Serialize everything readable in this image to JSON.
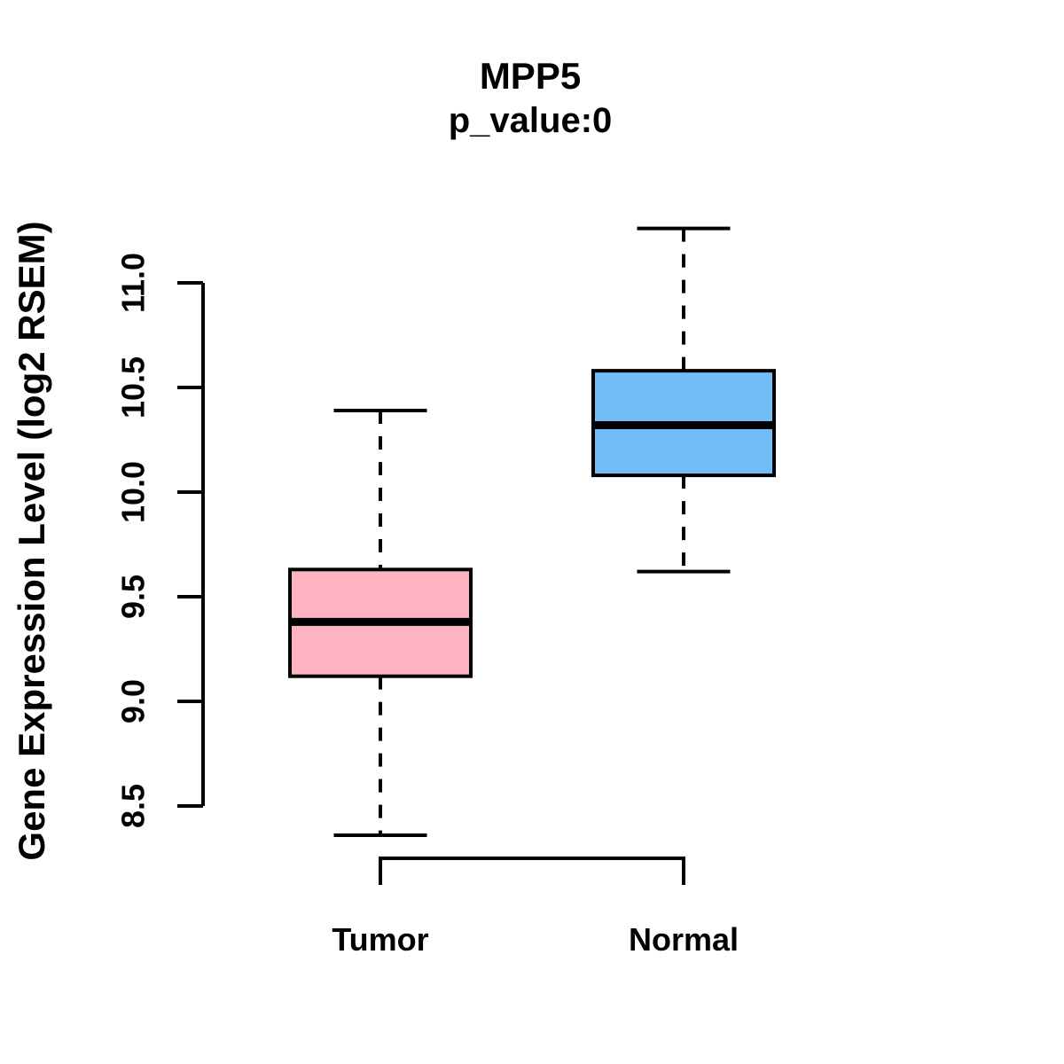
{
  "title": "MPP5",
  "subtitle": "p_value:0",
  "y_axis_label": "Gene Expression Level (log2 RSEM)",
  "chart_data": {
    "type": "boxplot",
    "title": "MPP5",
    "subtitle": "p_value:0",
    "ylabel": "Gene Expression Level (log2 RSEM)",
    "xlabel": "",
    "ylim": [
      8.5,
      11.0
    ],
    "y_ticks": [
      8.5,
      9.0,
      9.5,
      10.0,
      10.5,
      11.0
    ],
    "grid": false,
    "legend": "none",
    "categories": [
      "Tumor",
      "Normal"
    ],
    "series": [
      {
        "name": "Tumor",
        "fill_color": "#FFB3C1",
        "stroke_color": "#000000",
        "whisker_low": 8.36,
        "q1": 9.12,
        "median": 9.38,
        "q3": 9.63,
        "whisker_high": 10.39
      },
      {
        "name": "Normal",
        "fill_color": "#72BDF5",
        "stroke_color": "#000000",
        "whisker_low": 9.62,
        "q1": 10.08,
        "median": 10.32,
        "q3": 10.58,
        "whisker_high": 11.26
      }
    ]
  }
}
